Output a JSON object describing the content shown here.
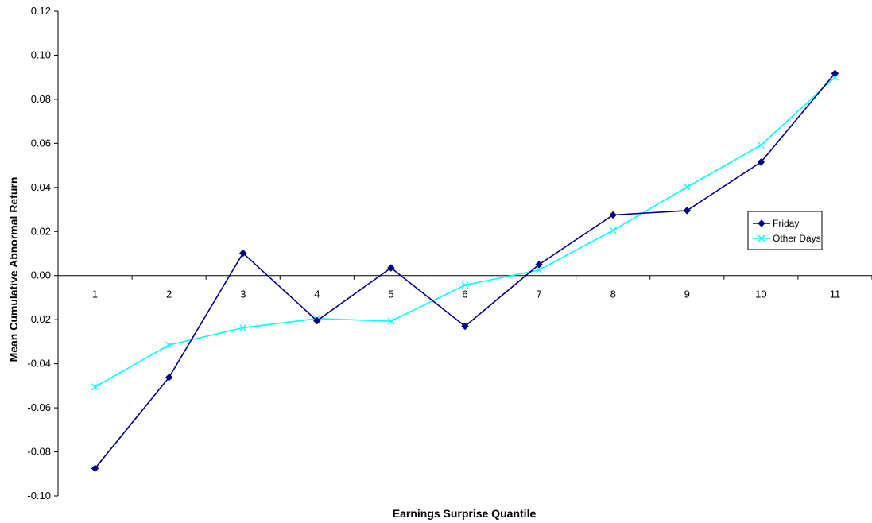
{
  "chart_data": {
    "type": "line",
    "title": "",
    "xlabel": "Earnings Surprise Quantile",
    "ylabel": "Mean Cumulative Abnormal Return",
    "categories": [
      "1",
      "2",
      "3",
      "4",
      "5",
      "6",
      "7",
      "8",
      "9",
      "10",
      "11"
    ],
    "yticks": [
      "0.12",
      "0.10",
      "0.08",
      "0.06",
      "0.04",
      "0.02",
      "0.00",
      "-0.02",
      "-0.04",
      "-0.06",
      "-0.08",
      "-0.10"
    ],
    "ylim": [
      -0.1,
      0.12
    ],
    "grid": false,
    "legend_position": "right",
    "series": [
      {
        "name": "Friday",
        "color": "#000080",
        "marker": "diamond",
        "values": [
          -0.0875,
          -0.0462,
          0.0102,
          -0.0205,
          0.0035,
          -0.023,
          0.005,
          0.0275,
          0.0295,
          0.0515,
          0.0918
        ]
      },
      {
        "name": "Other Days",
        "color": "#00FFFF",
        "marker": "x",
        "values": [
          -0.0505,
          -0.0315,
          -0.0237,
          -0.0195,
          -0.0207,
          -0.0043,
          0.0025,
          0.0205,
          0.0402,
          0.0592,
          0.09
        ]
      }
    ]
  }
}
